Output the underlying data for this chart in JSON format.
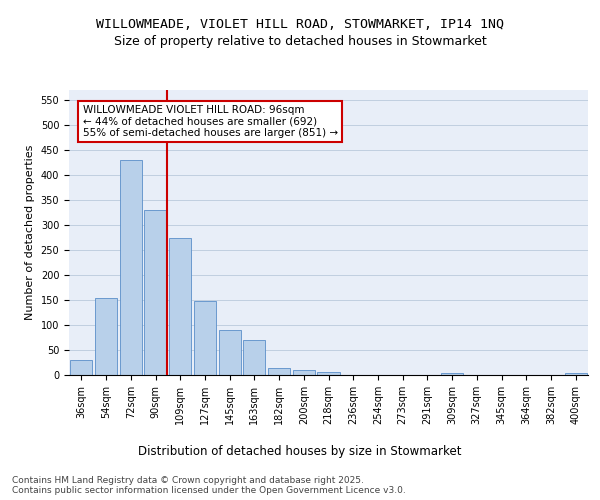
{
  "title1": "WILLOWMEADE, VIOLET HILL ROAD, STOWMARKET, IP14 1NQ",
  "title2": "Size of property relative to detached houses in Stowmarket",
  "xlabel": "Distribution of detached houses by size in Stowmarket",
  "ylabel": "Number of detached properties",
  "categories": [
    "36sqm",
    "54sqm",
    "72sqm",
    "90sqm",
    "109sqm",
    "127sqm",
    "145sqm",
    "163sqm",
    "182sqm",
    "200sqm",
    "218sqm",
    "236sqm",
    "254sqm",
    "273sqm",
    "291sqm",
    "309sqm",
    "327sqm",
    "345sqm",
    "364sqm",
    "382sqm",
    "400sqm"
  ],
  "values": [
    30,
    155,
    430,
    330,
    275,
    148,
    90,
    70,
    14,
    10,
    6,
    0,
    0,
    0,
    0,
    5,
    0,
    0,
    0,
    0,
    4
  ],
  "bar_color": "#b8d0ea",
  "bar_edge_color": "#5b8fc9",
  "annotation_text": "WILLOWMEADE VIOLET HILL ROAD: 96sqm\n← 44% of detached houses are smaller (692)\n55% of semi-detached houses are larger (851) →",
  "annotation_box_color": "#ffffff",
  "annotation_box_edge_color": "#cc0000",
  "vline_color": "#cc0000",
  "ylim": [
    0,
    570
  ],
  "yticks": [
    0,
    50,
    100,
    150,
    200,
    250,
    300,
    350,
    400,
    450,
    500,
    550
  ],
  "grid_color": "#c0cfe0",
  "background_color": "#e8eef8",
  "footer_text": "Contains HM Land Registry data © Crown copyright and database right 2025.\nContains public sector information licensed under the Open Government Licence v3.0.",
  "title1_fontsize": 9.5,
  "title2_fontsize": 9,
  "xlabel_fontsize": 8.5,
  "ylabel_fontsize": 8,
  "tick_fontsize": 7,
  "footer_fontsize": 6.5,
  "annotation_fontsize": 7.5
}
